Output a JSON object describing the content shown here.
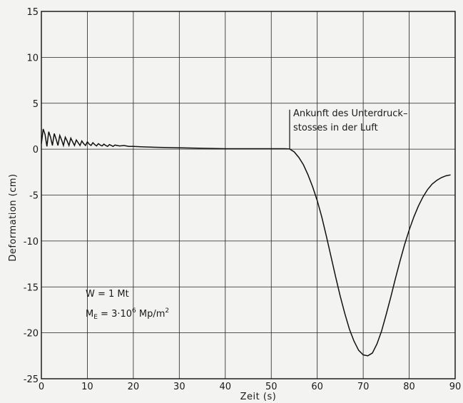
{
  "chart_data": {
    "type": "line",
    "title": "",
    "xlabel": "Zeit  (s)",
    "ylabel": "Deformation   (cm)",
    "xlim": [
      0,
      90
    ],
    "ylim": [
      -25,
      15
    ],
    "xticks": [
      0,
      10,
      20,
      30,
      40,
      50,
      60,
      70,
      80,
      90
    ],
    "yticks": [
      15,
      10,
      5,
      0,
      -5,
      -10,
      -15,
      -20,
      -25
    ],
    "grid": true,
    "series": [
      {
        "name": "",
        "x": [
          0,
          0.4,
          0.8,
          1.2,
          1.6,
          2.0,
          2.4,
          2.8,
          3.2,
          3.6,
          4.0,
          4.4,
          4.8,
          5.2,
          5.6,
          6.0,
          6.4,
          6.8,
          7.2,
          7.6,
          8.0,
          8.4,
          8.8,
          9.2,
          9.6,
          10.0,
          10.4,
          10.8,
          11.2,
          11.6,
          12.0,
          12.4,
          12.8,
          13.2,
          13.6,
          14.0,
          14.4,
          14.8,
          15.2,
          15.6,
          16.0,
          17,
          18,
          19,
          20,
          22,
          25,
          30,
          35,
          40,
          45,
          50,
          53,
          54,
          55,
          56,
          57,
          58,
          59,
          60,
          61,
          62,
          63,
          64,
          65,
          66,
          67,
          68,
          69,
          70,
          71,
          72,
          73,
          74,
          75,
          76,
          77,
          78,
          79,
          80,
          81,
          82,
          83,
          84,
          85,
          86,
          87,
          88,
          89
        ],
        "y": [
          0.6,
          2.2,
          1.6,
          0.3,
          1.9,
          1.3,
          0.4,
          1.7,
          1.1,
          0.4,
          1.5,
          1.0,
          0.4,
          1.3,
          0.9,
          0.4,
          1.2,
          0.8,
          0.4,
          1.0,
          0.7,
          0.4,
          0.9,
          0.6,
          0.4,
          0.8,
          0.55,
          0.4,
          0.7,
          0.5,
          0.35,
          0.6,
          0.45,
          0.35,
          0.55,
          0.4,
          0.3,
          0.5,
          0.4,
          0.3,
          0.45,
          0.35,
          0.4,
          0.3,
          0.3,
          0.25,
          0.2,
          0.15,
          0.1,
          0.05,
          0.05,
          0.05,
          0.05,
          0.02,
          -0.3,
          -0.9,
          -1.7,
          -2.8,
          -4.1,
          -5.6,
          -7.4,
          -9.5,
          -11.7,
          -13.9,
          -16.0,
          -17.9,
          -19.6,
          -20.9,
          -21.9,
          -22.4,
          -22.5,
          -22.2,
          -21.2,
          -19.8,
          -18.0,
          -16.1,
          -14.1,
          -12.2,
          -10.4,
          -8.8,
          -7.4,
          -6.2,
          -5.2,
          -4.4,
          -3.8,
          -3.4,
          -3.1,
          -2.9,
          -2.8
        ]
      }
    ],
    "annotations": [
      {
        "lines": [
          "Ankunft des Unterdruck–",
          "stosses in der Luft"
        ],
        "x": 54
      },
      {
        "text": "W = 1 Mt"
      },
      {
        "prefix": "M",
        "sub": "E",
        "mid": " = 3·10",
        "sup": "6",
        "tail": " Mp/m",
        "sup2": "2"
      }
    ]
  }
}
